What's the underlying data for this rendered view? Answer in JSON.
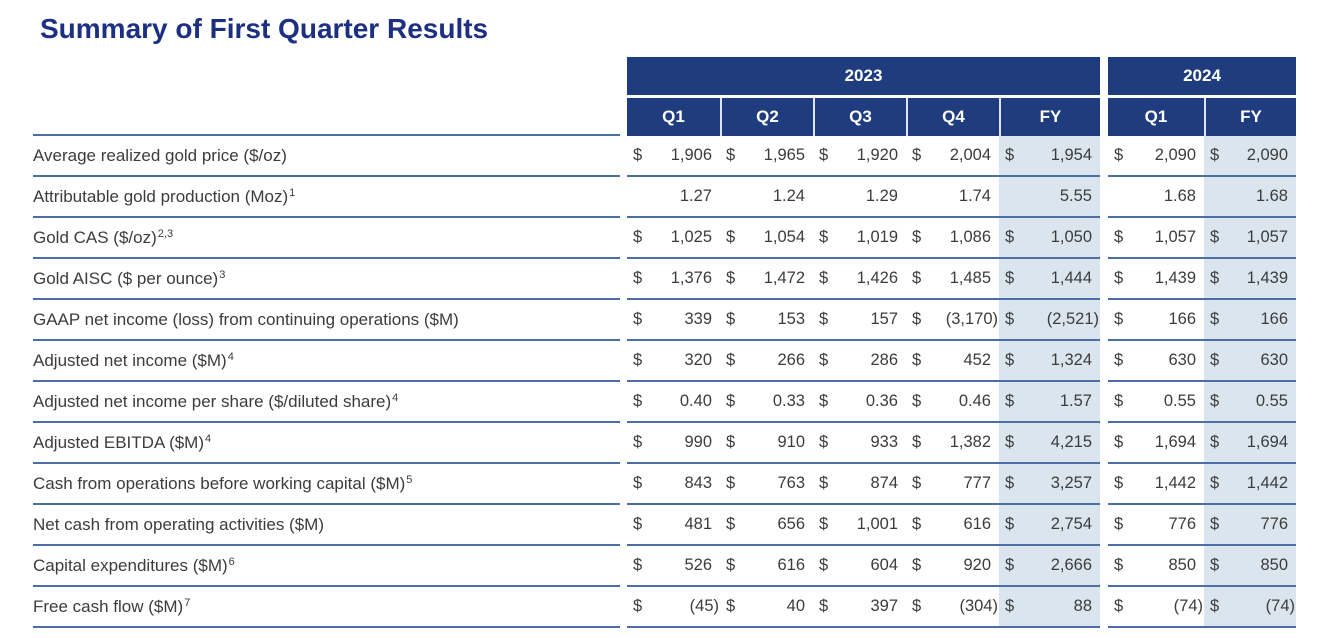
{
  "title": "Summary of First Quarter Results",
  "colors": {
    "title_text": "#1c2f80",
    "header_bg": "#1e3c7e",
    "header_text": "#ffffff",
    "header_divider": "#dfe6f2",
    "fy_shade": "#dae5ee",
    "rule": "#4c6ea6",
    "body_text": "#3c3c3c"
  },
  "table": {
    "currency_symbol": "$",
    "year_groups": [
      {
        "year": "2023",
        "quarters": [
          "Q1",
          "Q2",
          "Q3",
          "Q4",
          "FY"
        ]
      },
      {
        "year": "2024",
        "quarters": [
          "Q1",
          "FY"
        ]
      }
    ],
    "fy_column_indexes": [
      4,
      6
    ],
    "rows": [
      {
        "label": "Average realized gold price ($/oz)",
        "footnote": "",
        "dollar": true,
        "values": [
          "1,906",
          "1,965",
          "1,920",
          "2,004",
          "1,954",
          "2,090",
          "2,090"
        ]
      },
      {
        "label": "Attributable gold production (Moz)",
        "footnote": "1",
        "dollar": false,
        "values": [
          "1.27",
          "1.24",
          "1.29",
          "1.74",
          "5.55",
          "1.68",
          "1.68"
        ]
      },
      {
        "label": "Gold CAS ($/oz)",
        "footnote": "2,3",
        "dollar": true,
        "values": [
          "1,025",
          "1,054",
          "1,019",
          "1,086",
          "1,050",
          "1,057",
          "1,057"
        ]
      },
      {
        "label": "Gold AISC ($ per ounce)",
        "footnote": "3",
        "dollar": true,
        "values": [
          "1,376",
          "1,472",
          "1,426",
          "1,485",
          "1,444",
          "1,439",
          "1,439"
        ]
      },
      {
        "label": "GAAP net income (loss) from continuing operations ($M)",
        "footnote": "",
        "dollar": true,
        "values": [
          "339",
          "153",
          "157",
          "(3,170)",
          "(2,521)",
          "166",
          "166"
        ]
      },
      {
        "label": "Adjusted net income ($M)",
        "footnote": "4",
        "dollar": true,
        "values": [
          "320",
          "266",
          "286",
          "452",
          "1,324",
          "630",
          "630"
        ]
      },
      {
        "label": "Adjusted net income per share ($/diluted share)",
        "footnote": "4",
        "dollar": true,
        "values": [
          "0.40",
          "0.33",
          "0.36",
          "0.46",
          "1.57",
          "0.55",
          "0.55"
        ]
      },
      {
        "label": "Adjusted EBITDA ($M)",
        "footnote": "4",
        "dollar": true,
        "values": [
          "990",
          "910",
          "933",
          "1,382",
          "4,215",
          "1,694",
          "1,694"
        ]
      },
      {
        "label": "Cash from operations before working capital ($M)",
        "footnote": "5",
        "dollar": true,
        "values": [
          "843",
          "763",
          "874",
          "777",
          "3,257",
          "1,442",
          "1,442"
        ]
      },
      {
        "label": "Net cash from operating activities ($M)",
        "footnote": "",
        "dollar": true,
        "values": [
          "481",
          "656",
          "1,001",
          "616",
          "2,754",
          "776",
          "776"
        ]
      },
      {
        "label": "Capital expenditures ($M)",
        "footnote": "6",
        "dollar": true,
        "values": [
          "526",
          "616",
          "604",
          "920",
          "2,666",
          "850",
          "850"
        ]
      },
      {
        "label": "Free cash flow ($M)",
        "footnote": "7",
        "dollar": true,
        "values": [
          "(45)",
          "40",
          "397",
          "(304)",
          "88",
          "(74)",
          "(74)"
        ]
      }
    ]
  }
}
